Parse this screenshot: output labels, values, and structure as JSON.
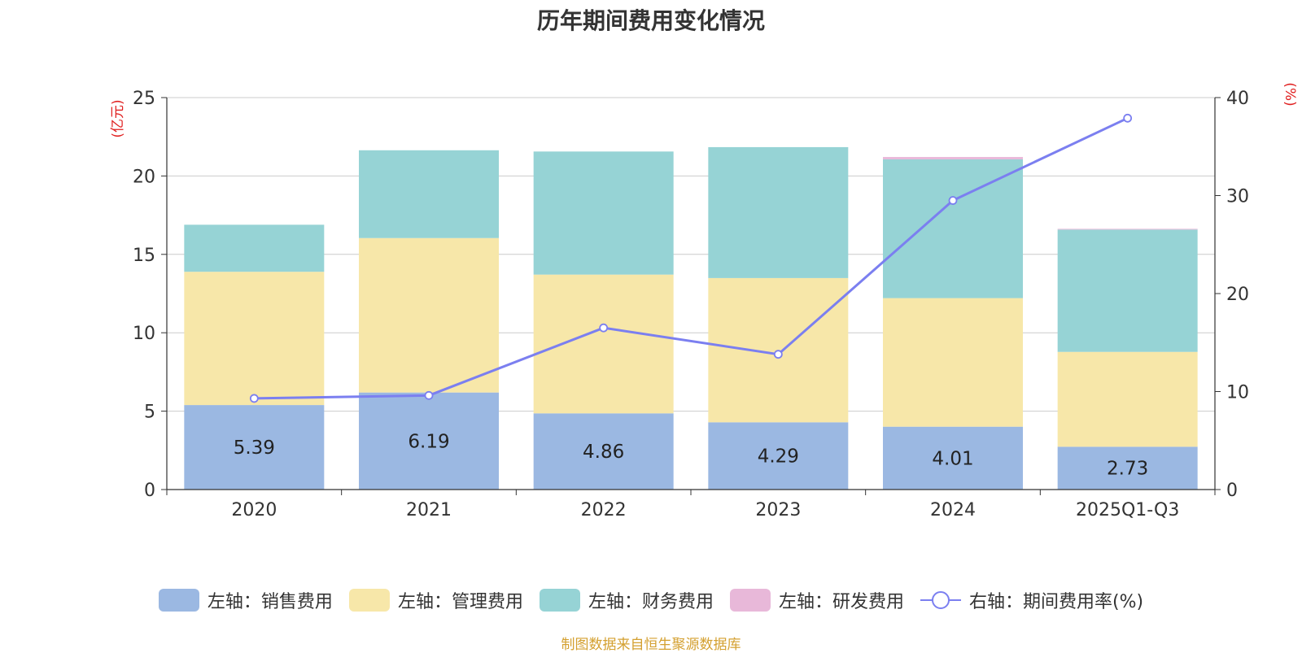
{
  "chart_data": {
    "type": "bar",
    "title": "历年期间费用变化情况",
    "categories": [
      "2020",
      "2021",
      "2022",
      "2023",
      "2024",
      "2025Q1-Q3"
    ],
    "left_axis": {
      "unit_label": "(亿元)",
      "ylim": [
        0,
        25
      ],
      "ticks": [
        0,
        5,
        10,
        15,
        20,
        25
      ]
    },
    "right_axis": {
      "unit_label": "(%)",
      "ylim": [
        0,
        40
      ],
      "ticks": [
        0,
        10,
        20,
        30,
        40
      ]
    },
    "series": [
      {
        "name": "左轴：销售费用",
        "kind": "bar",
        "axis": "left",
        "color": "#9bb8e2",
        "values": [
          5.39,
          6.19,
          4.86,
          4.29,
          4.01,
          2.73
        ],
        "labels": [
          "5.39",
          "6.19",
          "4.86",
          "4.29",
          "4.01",
          "2.73"
        ]
      },
      {
        "name": "左轴：管理费用",
        "kind": "bar",
        "axis": "left",
        "color": "#f7e7a9",
        "values": [
          8.5,
          9.85,
          8.85,
          9.2,
          8.2,
          6.05
        ]
      },
      {
        "name": "左轴：财务费用",
        "kind": "bar",
        "axis": "left",
        "color": "#96d3d5",
        "values": [
          3.0,
          5.6,
          7.85,
          8.35,
          8.85,
          7.8
        ]
      },
      {
        "name": "左轴：研发费用",
        "kind": "bar",
        "axis": "left",
        "color": "#e8b8d9",
        "values": [
          0.0,
          0.0,
          0.0,
          0.0,
          0.15,
          0.05
        ]
      },
      {
        "name": "右轴：期间费用率(%)",
        "kind": "line",
        "axis": "right",
        "color": "#7b7ff0",
        "values": [
          9.3,
          9.6,
          16.5,
          13.8,
          29.5,
          37.9
        ]
      }
    ],
    "grid": true,
    "legend": "bottom"
  },
  "source_note": "制图数据来自恒生聚源数据库"
}
